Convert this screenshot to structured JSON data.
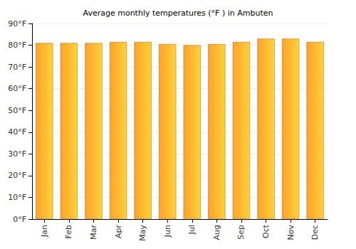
{
  "chart_data": {
    "type": "bar",
    "title": "Average monthly temperatures (°F ) in Ambuten",
    "categories": [
      "Jan",
      "Feb",
      "Mar",
      "Apr",
      "May",
      "Jun",
      "Jul",
      "Aug",
      "Sep",
      "Oct",
      "Nov",
      "Dec"
    ],
    "values": [
      81,
      81,
      81,
      81.5,
      81.5,
      80.5,
      80,
      80.5,
      81.5,
      83,
      83,
      81.5
    ],
    "color": "#ffa229",
    "ylim": [
      0,
      90
    ],
    "yticks": [
      {
        "value": 0,
        "label": "0°F"
      },
      {
        "value": 10,
        "label": "10°F"
      },
      {
        "value": 20,
        "label": "20°F"
      },
      {
        "value": 30,
        "label": "30°F"
      },
      {
        "value": 40,
        "label": "40°F"
      },
      {
        "value": 50,
        "label": "50°F"
      },
      {
        "value": 60,
        "label": "60°F"
      },
      {
        "value": 70,
        "label": "70°F"
      },
      {
        "value": 80,
        "label": "80°F"
      },
      {
        "value": 90,
        "label": "90°F"
      }
    ],
    "grid": true
  }
}
